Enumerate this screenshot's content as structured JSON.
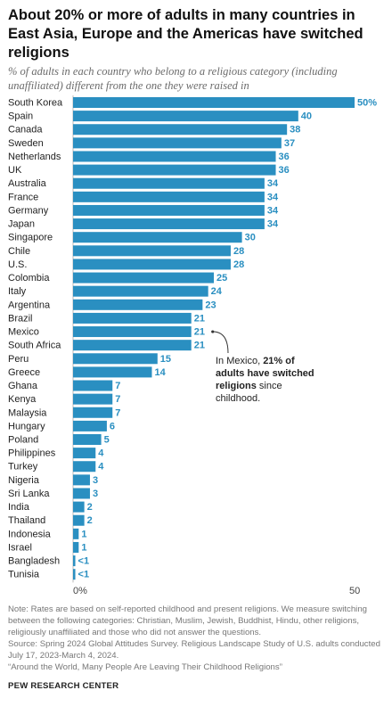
{
  "header": {
    "title": "About 20% or more of adults in many countries in East Asia, Europe and the Americas have switched religions",
    "subtitle": "% of adults in each country who belong to a religious category (including unaffiliated) different from the one they were raised in"
  },
  "annotation": {
    "prefix": "In Mexico, ",
    "bold": "21% of adults have switched religions",
    "suffix": " since childhood."
  },
  "footer": {
    "note": "Note: Rates are based on self-reported childhood and present religions. We measure switching between the following categories: Christian, Muslim, Jewish, Buddhist, Hindu, other religions, religiously unaffiliated and those who did not answer the questions.",
    "source": "Source: Spring 2024 Global Attitudes Survey. Religious Landscape Study of U.S. adults conducted July 17, 2023-March 4, 2024.",
    "report": "“Around the World, Many People Are Leaving Their Childhood Religions”",
    "brand": "PEW RESEARCH CENTER"
  },
  "colors": {
    "bar": "#2a8fc1",
    "value_label": "#2a8fc1",
    "annotation_line": "#333333"
  },
  "chart_data": {
    "type": "bar",
    "orientation": "horizontal",
    "categories": [
      "South Korea",
      "Spain",
      "Canada",
      "Sweden",
      "Netherlands",
      "UK",
      "Australia",
      "France",
      "Germany",
      "Japan",
      "Singapore",
      "Chile",
      "U.S.",
      "Colombia",
      "Italy",
      "Argentina",
      "Brazil",
      "Mexico",
      "South Africa",
      "Peru",
      "Greece",
      "Ghana",
      "Kenya",
      "Malaysia",
      "Hungary",
      "Poland",
      "Philippines",
      "Turkey",
      "Nigeria",
      "Sri Lanka",
      "India",
      "Thailand",
      "Indonesia",
      "Israel",
      "Bangladesh",
      "Tunisia"
    ],
    "values": [
      50,
      40,
      38,
      37,
      36,
      36,
      34,
      34,
      34,
      34,
      30,
      28,
      28,
      25,
      24,
      23,
      21,
      21,
      21,
      15,
      14,
      7,
      7,
      7,
      6,
      5,
      4,
      4,
      3,
      3,
      2,
      2,
      1,
      1,
      0.4,
      0.4
    ],
    "value_labels": [
      "50%",
      "40",
      "38",
      "37",
      "36",
      "36",
      "34",
      "34",
      "34",
      "34",
      "30",
      "28",
      "28",
      "25",
      "24",
      "23",
      "21",
      "21",
      "21",
      "15",
      "14",
      "7",
      "7",
      "7",
      "6",
      "5",
      "4",
      "4",
      "3",
      "3",
      "2",
      "2",
      "1",
      "1",
      "<1",
      "<1"
    ],
    "xlim": [
      0,
      50
    ],
    "x_ticks": [
      0,
      50
    ],
    "x_tick_labels": [
      "0%",
      "50"
    ],
    "grid": false,
    "legend": "none"
  }
}
